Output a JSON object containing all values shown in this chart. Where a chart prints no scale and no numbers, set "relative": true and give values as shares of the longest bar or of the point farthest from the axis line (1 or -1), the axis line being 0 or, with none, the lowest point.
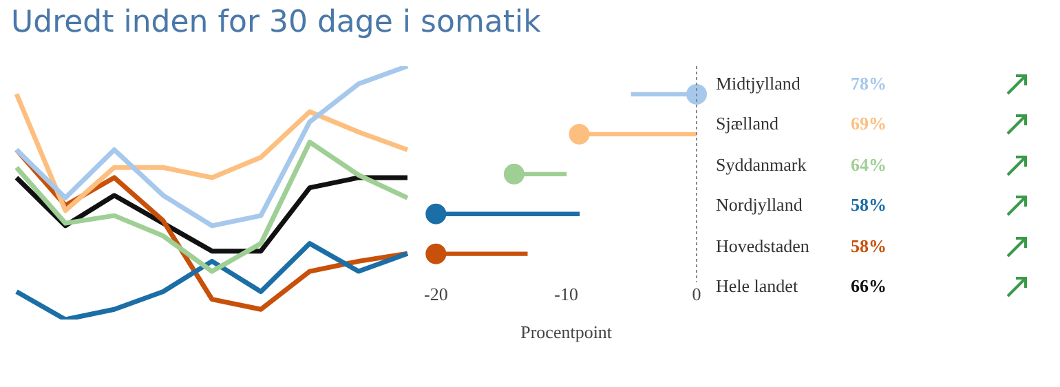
{
  "chart_data": [
    {
      "type": "line",
      "title": "Udredt inden for 30 dage i somatik",
      "relative": true,
      "categories": [
        null,
        null,
        null,
        null,
        null,
        null,
        null,
        null,
        null
      ],
      "series": [
        {
          "color": "#a6c8ec",
          "values": [
            0.67,
            0.48,
            0.67,
            0.49,
            0.37,
            0.41,
            0.78,
            0.93,
            1.0
          ]
        },
        {
          "color": "#fdbf80",
          "values": [
            0.89,
            0.43,
            0.6,
            0.6,
            0.56,
            0.64,
            0.82,
            0.74,
            0.67
          ]
        },
        {
          "color": "#9fcf95",
          "values": [
            0.6,
            0.38,
            0.41,
            0.33,
            0.19,
            0.3,
            0.7,
            0.57,
            0.48
          ]
        },
        {
          "color": "#1b6ea6",
          "values": [
            0.11,
            0.0,
            0.04,
            0.11,
            0.23,
            0.11,
            0.3,
            0.19,
            0.26
          ]
        },
        {
          "color": "#c8500a",
          "values": [
            0.67,
            0.45,
            0.56,
            0.39,
            0.08,
            0.04,
            0.19,
            0.23,
            0.26
          ]
        },
        {
          "color": "#111111",
          "values": [
            0.56,
            0.37,
            0.49,
            0.38,
            0.27,
            0.27,
            0.52,
            0.56,
            0.56
          ]
        }
      ],
      "grid": false,
      "legend": false,
      "marker": "none"
    },
    {
      "type": "bar",
      "orientation": "horizontal",
      "categories": [
        null,
        null,
        null,
        null,
        null
      ],
      "xlabel": "Procentpoint",
      "xlim": [
        -20,
        0
      ],
      "xticks": [
        -20,
        -10,
        0
      ],
      "series": [
        {
          "type": "bar",
          "colors": [
            "#a6c8ec",
            "#fdbf80",
            "#9fcf95",
            "#1b6ea6",
            "#c8500a"
          ],
          "base": [
            0,
            -9,
            -14,
            -20,
            -20
          ],
          "values": [
            -5,
            9,
            4,
            11,
            7
          ]
        },
        {
          "type": "scatter",
          "colors": [
            "#a6c8ec",
            "#fdbf80",
            "#9fcf95",
            "#1b6ea6",
            "#c8500a"
          ],
          "values": [
            0,
            -9,
            -14,
            -20,
            -20
          ]
        }
      ],
      "ref_lines": [
        {
          "axis": "x",
          "value": 0,
          "color": "#888888",
          "line_style": "dotted"
        }
      ],
      "grid": false,
      "legend": false
    },
    {
      "type": "other",
      "categories": [
        "Midtjylland",
        "Sjælland",
        "Syddanmark",
        "Nordjylland",
        "Hovedstaden",
        "Hele landet"
      ],
      "value_labels": [
        "78%",
        "69%",
        "64%",
        "58%",
        "58%",
        "66%"
      ],
      "colors": [
        "#a6c8ec",
        "#fdbf80",
        "#9fcf95",
        "#1b6ea6",
        "#c8500a",
        "#111111"
      ]
    }
  ]
}
